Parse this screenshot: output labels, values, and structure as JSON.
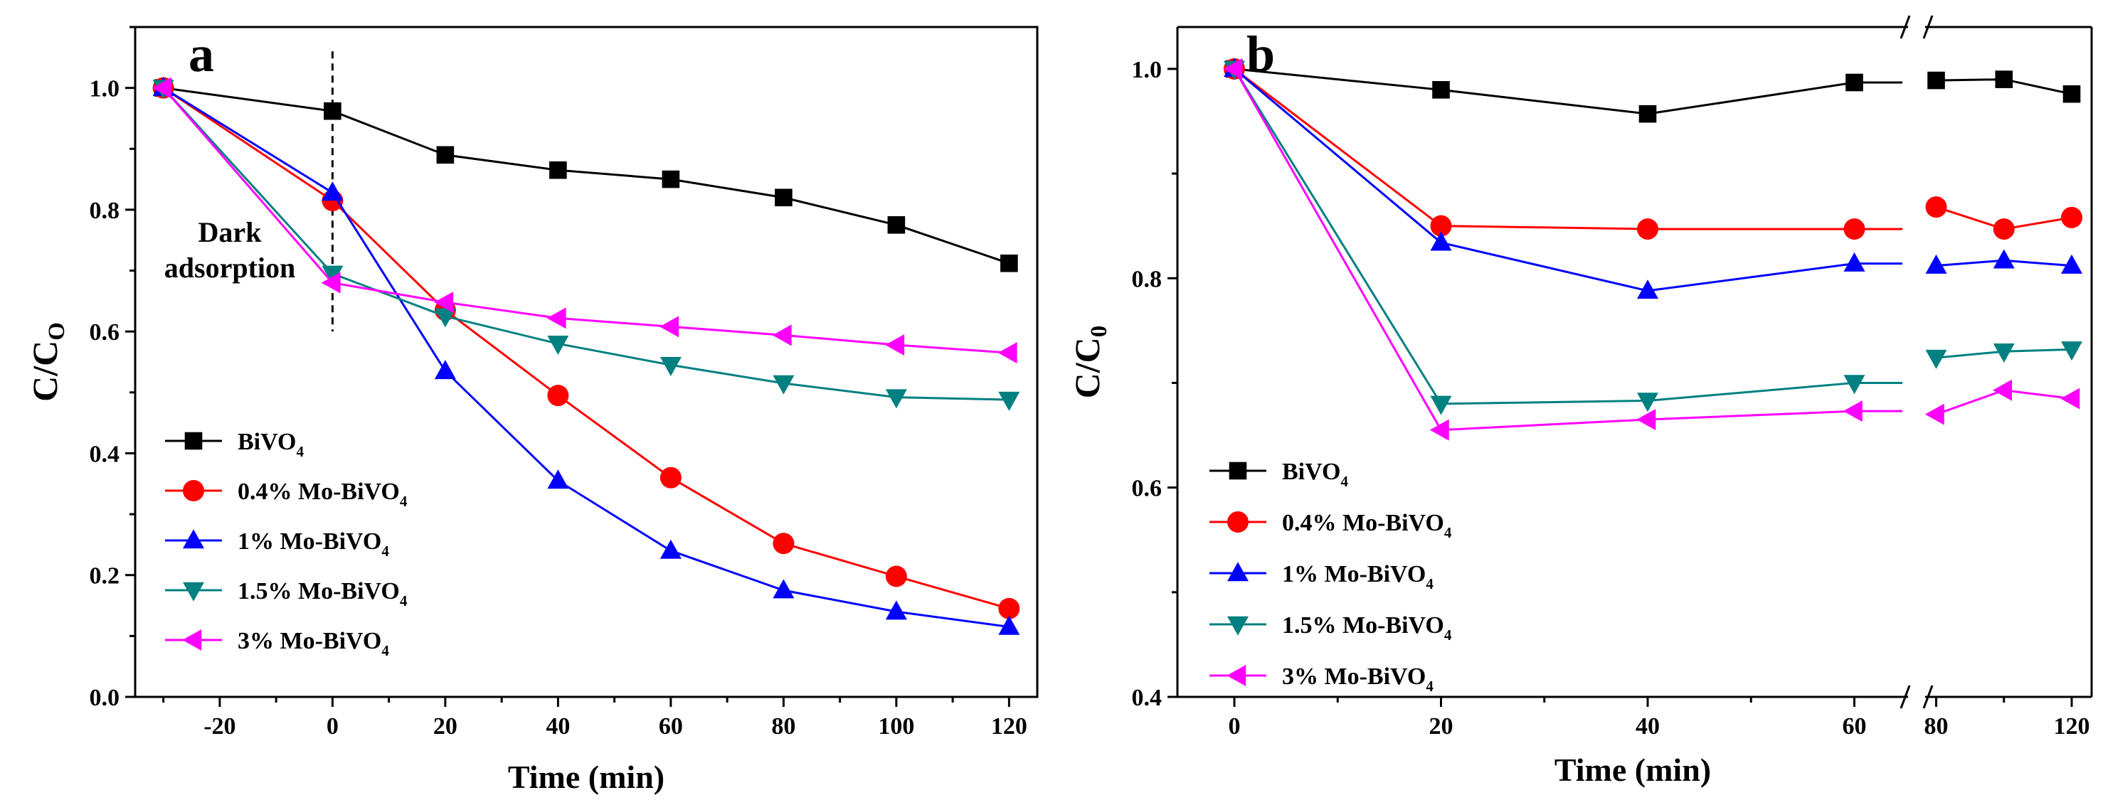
{
  "chart_data": [
    {
      "type": "line",
      "panel_label": "a",
      "xlabel": "Time (min)",
      "ylabel_main": "C/C",
      "ylabel_sub": "O",
      "xlim": [
        -35,
        125
      ],
      "ylim": [
        0.0,
        1.1
      ],
      "xticks": [
        -20,
        0,
        20,
        40,
        60,
        80,
        100,
        120
      ],
      "yticks": [
        0.0,
        0.2,
        0.4,
        0.6,
        0.8,
        1.0
      ],
      "annotation": {
        "lines": [
          "Dark",
          "adsorption"
        ],
        "divider_x": 0
      },
      "series": [
        {
          "name": "BiVO",
          "sub": "4",
          "color": "#000000",
          "marker": "square",
          "x": [
            -30,
            0,
            20,
            40,
            60,
            80,
            100,
            120
          ],
          "y": [
            1.0,
            0.962,
            0.89,
            0.865,
            0.85,
            0.82,
            0.775,
            0.712
          ]
        },
        {
          "name": "0.4% Mo-BiVO",
          "sub": "4",
          "color": "#ff0000",
          "marker": "circle",
          "x": [
            -30,
            0,
            20,
            40,
            60,
            80,
            100,
            120
          ],
          "y": [
            1.0,
            0.815,
            0.635,
            0.495,
            0.36,
            0.252,
            0.198,
            0.145
          ]
        },
        {
          "name": "1% Mo-BiVO",
          "sub": "4",
          "color": "#0000ff",
          "marker": "triangle-up",
          "x": [
            -30,
            0,
            20,
            40,
            60,
            80,
            100,
            120
          ],
          "y": [
            1.0,
            0.828,
            0.535,
            0.355,
            0.24,
            0.175,
            0.14,
            0.115
          ]
        },
        {
          "name": "1.5% Mo-BiVO",
          "sub": "4",
          "color": "#008080",
          "marker": "triangle-down",
          "x": [
            -30,
            0,
            20,
            40,
            60,
            80,
            100,
            120
          ],
          "y": [
            1.0,
            0.695,
            0.625,
            0.58,
            0.545,
            0.515,
            0.492,
            0.488
          ]
        },
        {
          "name": "3% Mo-BiVO",
          "sub": "4",
          "color": "#ff00ff",
          "marker": "triangle-left",
          "x": [
            -30,
            0,
            20,
            40,
            60,
            80,
            100,
            120
          ],
          "y": [
            1.0,
            0.68,
            0.648,
            0.622,
            0.608,
            0.594,
            0.578,
            0.565
          ]
        }
      ]
    },
    {
      "type": "line",
      "panel_label": "b",
      "xlabel": "Time (min)",
      "ylabel_main": "C/C",
      "ylabel_sub": "0",
      "xlim": [
        -6,
        74
      ],
      "ylim": [
        0.4,
        1.04
      ],
      "x_break": {
        "before_end": 68,
        "after_start": 78,
        "after_end": 120
      },
      "xticks": [
        0,
        20,
        40,
        60,
        80,
        120
      ],
      "yticks": [
        0.4,
        0.6,
        0.8,
        1.0
      ],
      "series": [
        {
          "name": "BiVO",
          "sub": "4",
          "color": "#000000",
          "marker": "square",
          "x": [
            0,
            20,
            40,
            60,
            80,
            100,
            120
          ],
          "y": [
            1.0,
            0.98,
            0.957,
            0.987,
            0.989,
            0.99,
            0.976
          ]
        },
        {
          "name": "0.4% Mo-BiVO",
          "sub": "4",
          "color": "#ff0000",
          "marker": "circle",
          "x": [
            0,
            20,
            40,
            60,
            80,
            100,
            120
          ],
          "y": [
            1.0,
            0.85,
            0.847,
            0.847,
            0.868,
            0.847,
            0.858
          ]
        },
        {
          "name": "1% Mo-BiVO",
          "sub": "4",
          "color": "#0000ff",
          "marker": "triangle-up",
          "x": [
            0,
            20,
            40,
            60,
            80,
            100,
            120
          ],
          "y": [
            1.0,
            0.834,
            0.788,
            0.814,
            0.812,
            0.817,
            0.812
          ]
        },
        {
          "name": "1.5% Mo-BiVO",
          "sub": "4",
          "color": "#008080",
          "marker": "triangle-down",
          "x": [
            0,
            20,
            40,
            60,
            80,
            100,
            120
          ],
          "y": [
            1.0,
            0.68,
            0.683,
            0.7,
            0.724,
            0.73,
            0.732
          ]
        },
        {
          "name": "3% Mo-BiVO",
          "sub": "4",
          "color": "#ff00ff",
          "marker": "triangle-left",
          "x": [
            0,
            20,
            40,
            60,
            80,
            100,
            120
          ],
          "y": [
            1.0,
            0.655,
            0.665,
            0.673,
            0.67,
            0.693,
            0.685
          ]
        }
      ]
    }
  ]
}
